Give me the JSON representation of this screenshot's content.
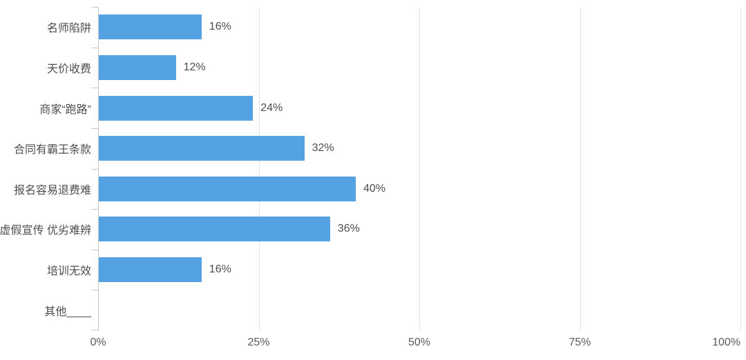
{
  "colors": {
    "background": "#ffffff",
    "bar": "#55a2e3",
    "grid_line": "#e2e2e2",
    "axis_line": "#c9c9c9",
    "category_text": "#4d4d4d",
    "value_text": "#4d4d4d",
    "tick_text": "#595959"
  },
  "chart_data": {
    "type": "bar",
    "orientation": "horizontal",
    "title": "",
    "categories": [
      "名师陷阱",
      "天价收费",
      "商家“跑路”",
      "合同有霸王条款",
      "报名容易退费难",
      "虚假宣传 优劣难辨",
      "培训无效",
      "其他____"
    ],
    "values": [
      16,
      12,
      24,
      32,
      40,
      36,
      16,
      0
    ],
    "value_labels": [
      "16%",
      "12%",
      "24%",
      "32%",
      "40%",
      "36%",
      "16%",
      ""
    ],
    "x_axis": {
      "min": 0,
      "max": 100,
      "ticks": [
        0,
        25,
        50,
        75,
        100
      ],
      "tick_labels": [
        "0%",
        "25%",
        "50%",
        "75%",
        "100%"
      ]
    },
    "grid": true,
    "legend_position": "none"
  }
}
